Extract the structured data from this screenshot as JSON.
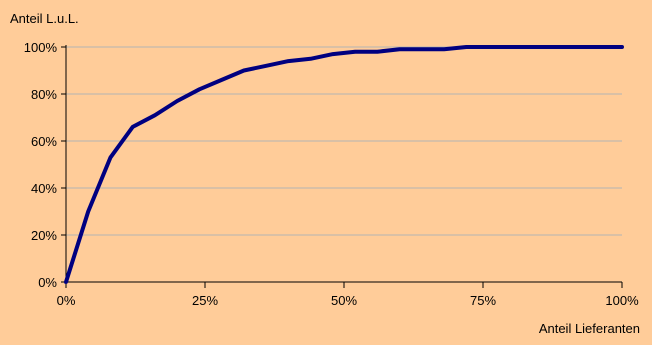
{
  "chart_data": {
    "type": "line",
    "title": "",
    "ylabel": "Anteil L.u.L.",
    "xlabel": "Anteil Lieferanten",
    "x_ticks": [
      "0%",
      "25%",
      "50%",
      "75%",
      "100%"
    ],
    "y_ticks": [
      "0%",
      "20%",
      "40%",
      "60%",
      "80%",
      "100%"
    ],
    "xlim": [
      0,
      100
    ],
    "ylim": [
      0,
      100
    ],
    "grid": "horizontal",
    "series": [
      {
        "x": [
          0,
          4,
          8,
          12,
          16,
          20,
          24,
          28,
          32,
          36,
          40,
          44,
          48,
          52,
          56,
          60,
          64,
          68,
          72,
          76,
          80,
          84,
          88,
          92,
          96,
          100
        ],
        "y": [
          0,
          30,
          53,
          66,
          71,
          77,
          82,
          86,
          90,
          92,
          94,
          95,
          97,
          98,
          98,
          99,
          99,
          99,
          100,
          100,
          100,
          100,
          100,
          100,
          100,
          100
        ]
      }
    ]
  },
  "colors": {
    "background": "#ffcc99",
    "line": "#000080",
    "grid": "#b3b3b3",
    "axis": "#000000"
  }
}
